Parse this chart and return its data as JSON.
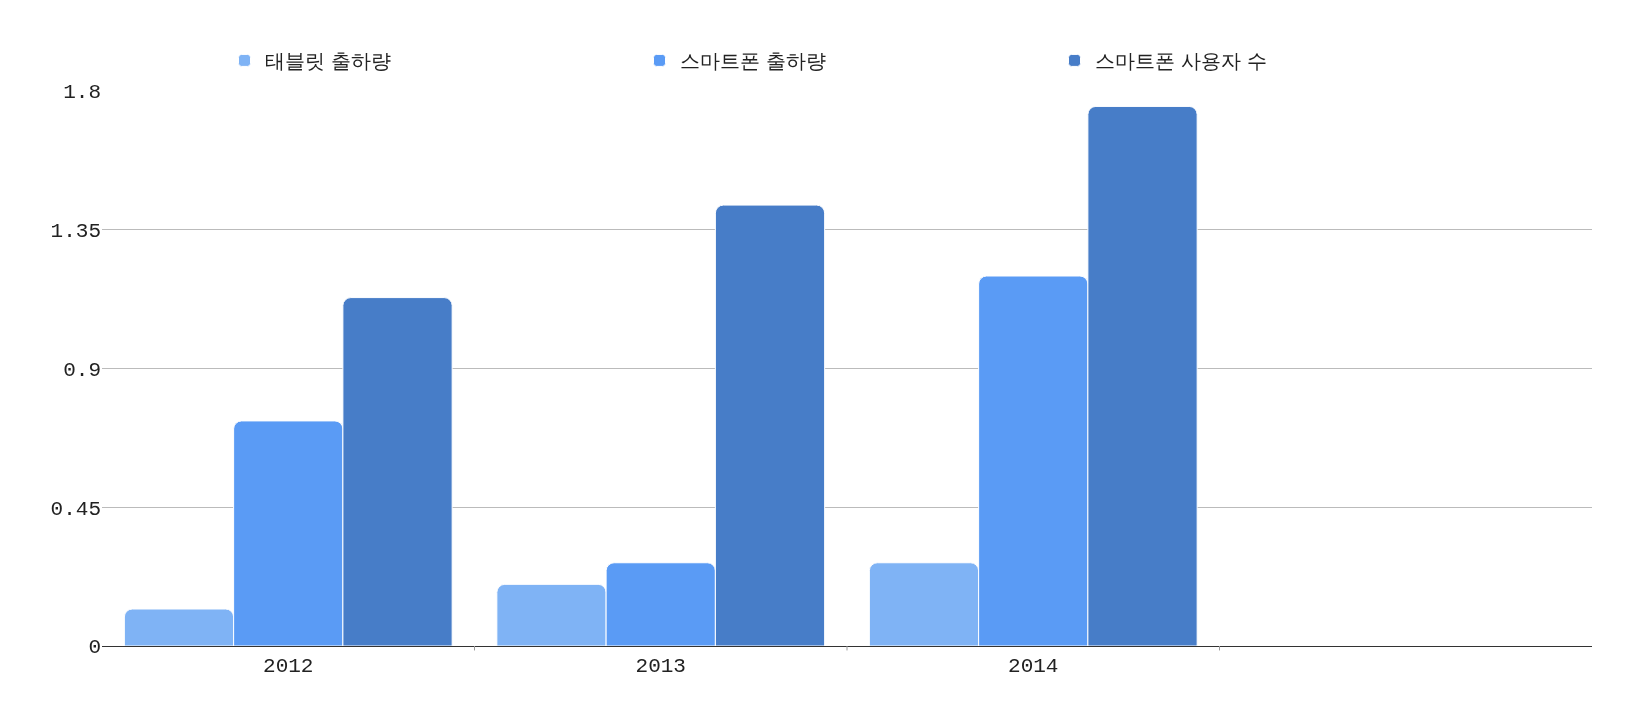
{
  "chart_data": {
    "type": "bar",
    "categories": [
      "2012",
      "2013",
      "2014",
      null
    ],
    "series": [
      {
        "name": "태블릿 출하량",
        "color": "#7fb3f5",
        "values": [
          0.12,
          0.2,
          0.27,
          null
        ]
      },
      {
        "name": "스마트폰 출하량",
        "color": "#5a9bf5",
        "values": [
          0.73,
          0.27,
          1.2,
          null
        ]
      },
      {
        "name": "스마트폰 사용자 수",
        "color": "#477dc8",
        "values": [
          1.13,
          1.43,
          1.75,
          null
        ]
      }
    ],
    "ylim": [
      0,
      1.8
    ],
    "yticks": [
      0,
      0.45,
      0.9,
      1.35,
      1.8
    ],
    "grid": "y",
    "legend": "top"
  }
}
